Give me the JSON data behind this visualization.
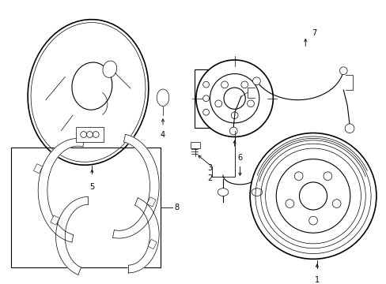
{
  "background_color": "#ffffff",
  "line_color": "#000000",
  "figsize": [
    4.89,
    3.6
  ],
  "dpi": 100,
  "lw_thin": 0.5,
  "lw_med": 0.8,
  "lw_thick": 1.2
}
